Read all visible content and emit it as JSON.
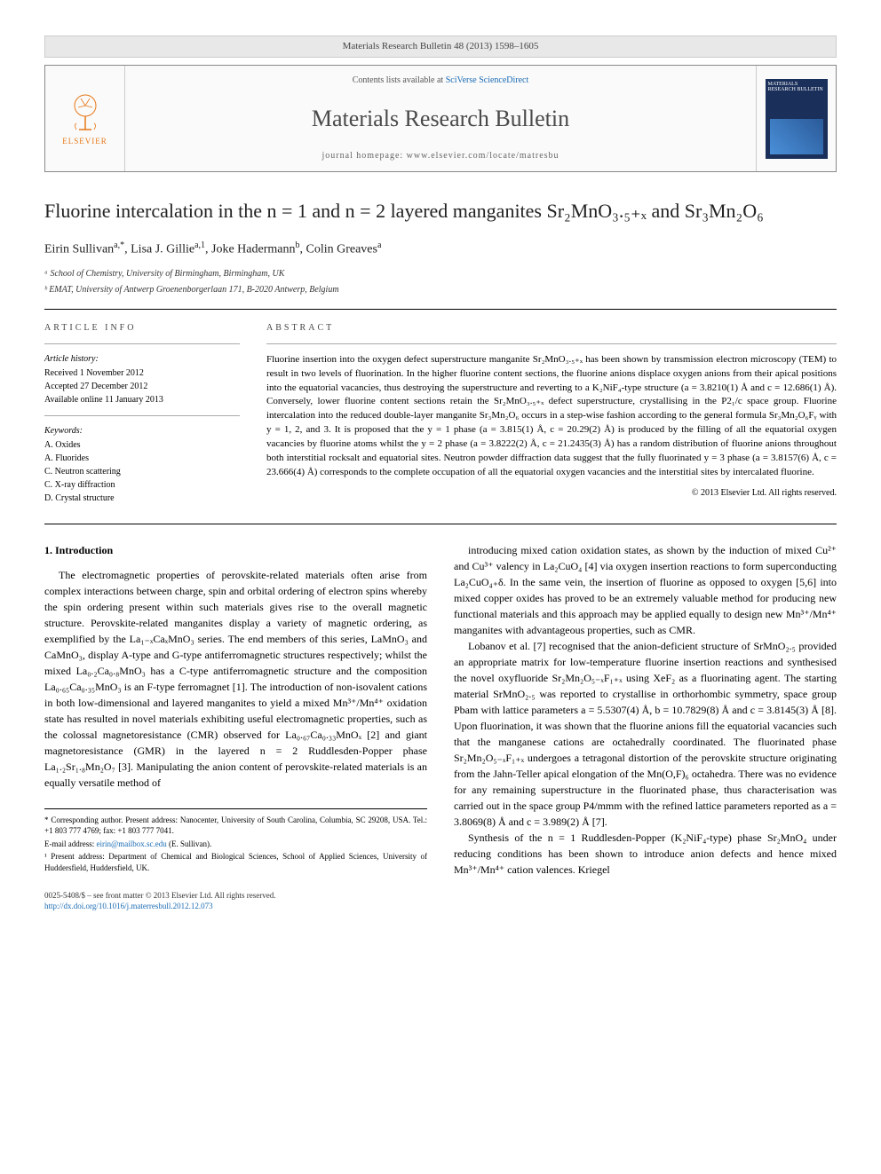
{
  "header": {
    "citation": "Materials Research Bulletin 48 (2013) 1598–1605"
  },
  "masthead": {
    "publisher": "ELSEVIER",
    "contents_prefix": "Contents lists available at ",
    "contents_link": "SciVerse ScienceDirect",
    "journal": "Materials Research Bulletin",
    "homepage_prefix": "journal homepage: ",
    "homepage": "www.elsevier.com/locate/matresbu",
    "cover_title": "MATERIALS RESEARCH BULLETIN"
  },
  "title": "Fluorine intercalation in the n = 1 and n = 2 layered manganites Sr₂MnO₃.₅₊ₓ and Sr₃Mn₂O₆",
  "authors_html": "Eirin Sullivan<sup>a,*</sup>, Lisa J. Gillie<sup>a,1</sup>, Joke Hadermann<sup>b</sup>, Colin Greaves<sup>a</sup>",
  "affiliations": [
    "ᵃ School of Chemistry, University of Birmingham, Birmingham, UK",
    "ᵇ EMAT, University of Antwerp Groenenborgerlaan 171, B-2020 Antwerp, Belgium"
  ],
  "info": {
    "heading": "ARTICLE INFO",
    "history_heading": "Article history:",
    "history": [
      "Received 1 November 2012",
      "Accepted 27 December 2012",
      "Available online 11 January 2013"
    ],
    "keywords_heading": "Keywords:",
    "keywords": [
      "A. Oxides",
      "A. Fluorides",
      "C. Neutron scattering",
      "C. X-ray diffraction",
      "D. Crystal structure"
    ]
  },
  "abstract": {
    "heading": "ABSTRACT",
    "text": "Fluorine insertion into the oxygen defect superstructure manganite Sr₂MnO₃.₅₊ₓ has been shown by transmission electron microscopy (TEM) to result in two levels of fluorination. In the higher fluorine content sections, the fluorine anions displace oxygen anions from their apical positions into the equatorial vacancies, thus destroying the superstructure and reverting to a K₂NiF₄-type structure (a = 3.8210(1) Å and c = 12.686(1) Å). Conversely, lower fluorine content sections retain the Sr₂MnO₃.₅₊ₓ defect superstructure, crystallising in the P2₁/c space group. Fluorine intercalation into the reduced double-layer manganite Sr₃Mn₂O₆ occurs in a step-wise fashion according to the general formula Sr₃Mn₂O₆Fᵧ with y = 1, 2, and 3. It is proposed that the y = 1 phase (a = 3.815(1) Å, c = 20.29(2) Å) is produced by the filling of all the equatorial oxygen vacancies by fluorine atoms whilst the y = 2 phase (a = 3.8222(2) Å, c = 21.2435(3) Å) has a random distribution of fluorine anions throughout both interstitial rocksalt and equatorial sites. Neutron powder diffraction data suggest that the fully fluorinated y = 3 phase (a = 3.8157(6) Å, c = 23.666(4) Å) corresponds to the complete occupation of all the equatorial oxygen vacancies and the interstitial sites by intercalated fluorine.",
    "copyright": "© 2013 Elsevier Ltd. All rights reserved."
  },
  "body": {
    "section_heading": "1. Introduction",
    "col1_p1": "The electromagnetic properties of perovskite-related materials often arise from complex interactions between charge, spin and orbital ordering of electron spins whereby the spin ordering present within such materials gives rise to the overall magnetic structure. Perovskite-related manganites display a variety of magnetic ordering, as exemplified by the La₁₋ₓCaₓMnO₃ series. The end members of this series, LaMnO₃ and CaMnO₃, display A-type and G-type antiferromagnetic structures respectively; whilst the mixed La₀.₂Ca₀.₈MnO₃ has a C-type antiferromagnetic structure and the composition La₀.₆₅Ca₀.₃₅MnO₃ is an F-type ferromagnet [1]. The introduction of non-isovalent cations in both low-dimensional and layered manganites to yield a mixed Mn³⁺/Mn⁴⁺ oxidation state has resulted in novel materials exhibiting useful electromagnetic properties, such as the colossal magnetoresistance (CMR) observed for La₀.₆₇Ca₀.₃₃MnOₓ [2] and giant magnetoresistance (GMR) in the layered n = 2 Ruddlesden-Popper phase La₁.₂Sr₁.₈Mn₂O₇ [3]. Manipulating the anion content of perovskite-related materials is an equally versatile method of",
    "col2_p1": "introducing mixed cation oxidation states, as shown by the induction of mixed Cu²⁺ and Cu³⁺ valency in La₂CuO₄ [4] via oxygen insertion reactions to form superconducting La₂CuO₄₊δ. In the same vein, the insertion of fluorine as opposed to oxygen [5,6] into mixed copper oxides has proved to be an extremely valuable method for producing new functional materials and this approach may be applied equally to design new Mn³⁺/Mn⁴⁺ manganites with advantageous properties, such as CMR.",
    "col2_p2": "Lobanov et al. [7] recognised that the anion-deficient structure of SrMnO₂.₅ provided an appropriate matrix for low-temperature fluorine insertion reactions and synthesised the novel oxyfluoride Sr₂Mn₂O₅₋ₓF₁₊ₓ using XeF₂ as a fluorinating agent. The starting material SrMnO₂.₅ was reported to crystallise in orthorhombic symmetry, space group Pbam with lattice parameters a = 5.5307(4) Å, b = 10.7829(8) Å and c = 3.8145(3) Å [8]. Upon fluorination, it was shown that the fluorine anions fill the equatorial vacancies such that the manganese cations are octahedrally coordinated. The fluorinated phase Sr₂Mn₂O₅₋ₓF₁₊ₓ undergoes a tetragonal distortion of the perovskite structure originating from the Jahn-Teller apical elongation of the Mn(O,F)₆ octahedra. There was no evidence for any remaining superstructure in the fluorinated phase, thus characterisation was carried out in the space group P4/mmm with the refined lattice parameters reported as a = 3.8069(8) Å and c = 3.989(2) Å [7].",
    "col2_p3": "Synthesis of the n = 1 Ruddlesden-Popper (K₂NiF₄-type) phase Sr₂MnO₄ under reducing conditions has been shown to introduce anion defects and hence mixed Mn³⁺/Mn⁴⁺ cation valences. Kriegel"
  },
  "footnotes": {
    "corr": "* Corresponding author. Present address: Nanocenter, University of South Carolina, Columbia, SC 29208, USA. Tel.: +1 803 777 4769; fax: +1 803 777 7041.",
    "email_label": "E-mail address: ",
    "email": "eirin@mailbox.sc.edu",
    "email_suffix": " (E. Sullivan).",
    "note1": "¹ Present address: Department of Chemical and Biological Sciences, School of Applied Sciences, University of Huddersfield, Huddersfield, UK."
  },
  "footer": {
    "left1": "0025-5408/$ – see front matter © 2013 Elsevier Ltd. All rights reserved.",
    "doi_url": "http://dx.doi.org/10.1016/j.materresbull.2012.12.073"
  },
  "colors": {
    "link": "#1a6bb3",
    "elsevier_orange": "#e67817",
    "cover_bg": "#1a2f5a"
  }
}
